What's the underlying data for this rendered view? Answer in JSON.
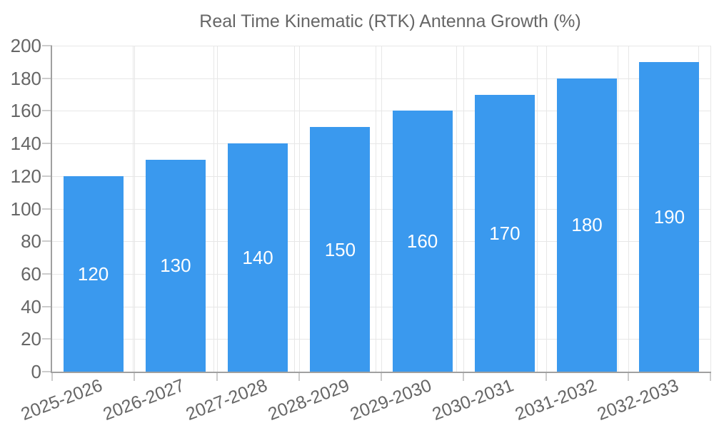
{
  "chart_data": {
    "type": "bar",
    "title": "Real Time Kinematic (RTK) Antenna Growth (%)",
    "categories": [
      "2025-2026",
      "2026-2027",
      "2027-2028",
      "2028-2029",
      "2029-2030",
      "2030-2031",
      "2031-2032",
      "2032-2033"
    ],
    "values": [
      120,
      130,
      140,
      150,
      160,
      170,
      180,
      190
    ],
    "bar_value_labels": [
      "120",
      "130",
      "140",
      "150",
      "160",
      "170",
      "180",
      "190"
    ],
    "xlabel": "",
    "ylabel": "",
    "ylim": [
      0,
      200
    ],
    "y_ticks": [
      0,
      20,
      40,
      60,
      80,
      100,
      120,
      140,
      160,
      180,
      200
    ],
    "grid": true,
    "legend_position": "top",
    "colors": {
      "bar": "#3A99EE",
      "bar_label": "#FFFFFF",
      "axis_text": "#666666",
      "gridline": "#E7E7E7",
      "axis_line": "#A0A0A0",
      "tick_mark": "#CCCCCC",
      "background": "#FFFFFF"
    }
  }
}
